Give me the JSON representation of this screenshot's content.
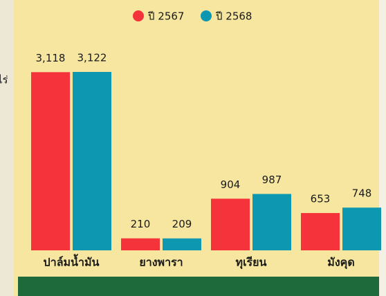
{
  "chart_data": {
    "type": "bar",
    "unit": "ไร่",
    "categories": [
      "ปาล์มน้ำมัน",
      "ยางพารา",
      "ทุเรียน",
      "มังคุด"
    ],
    "series": [
      {
        "name": "ปี 2567",
        "color": "#f5333b",
        "values": [
          3118,
          210,
          904,
          653
        ],
        "value_labels": [
          "3,118",
          "210",
          "904",
          "653"
        ]
      },
      {
        "name": "ปี 2568",
        "color": "#0e97b1",
        "values": [
          3122,
          209,
          987,
          748
        ],
        "value_labels": [
          "3,122",
          "209",
          "987",
          "748"
        ]
      }
    ],
    "legend": "top"
  }
}
